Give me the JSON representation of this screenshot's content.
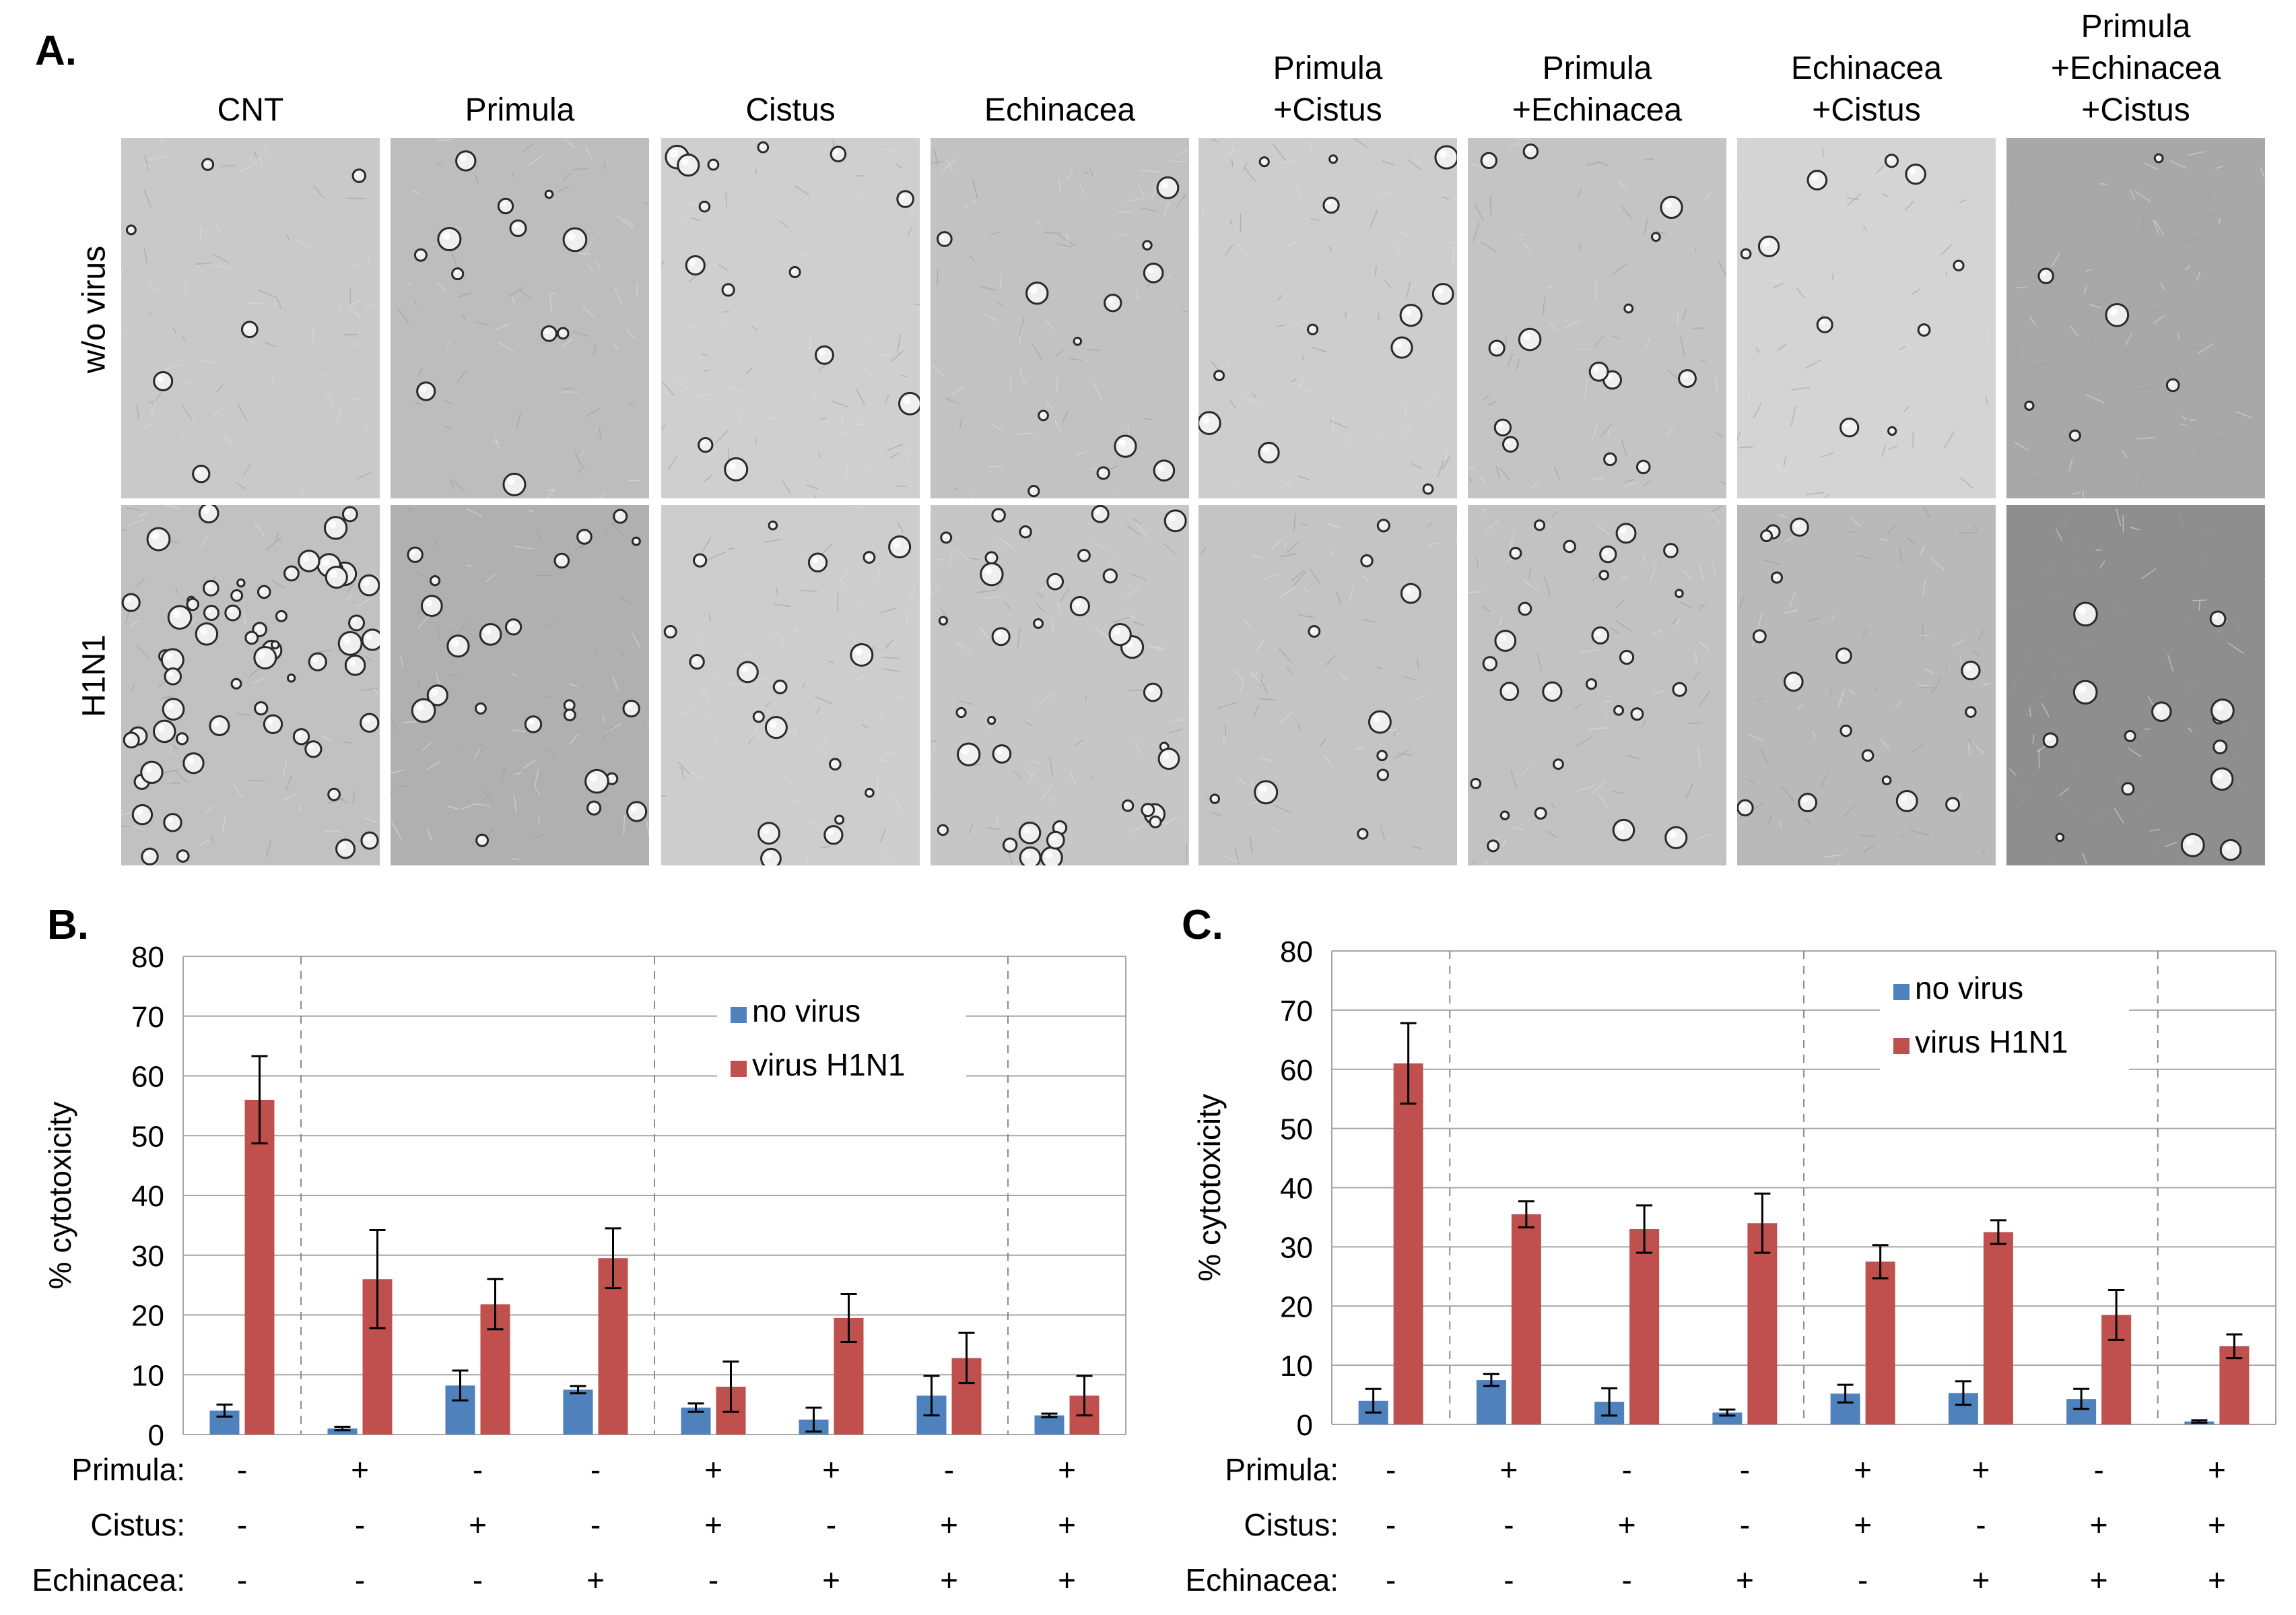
{
  "panel_a": {
    "label": "A.",
    "columns": [
      {
        "lines": [
          "CNT"
        ]
      },
      {
        "lines": [
          "Primula"
        ]
      },
      {
        "lines": [
          "Cistus"
        ]
      },
      {
        "lines": [
          "Echinacea"
        ]
      },
      {
        "lines": [
          "Primula",
          "+Cistus"
        ]
      },
      {
        "lines": [
          "Primula",
          "+Echinacea"
        ]
      },
      {
        "lines": [
          "Echinacea",
          "+Cistus"
        ]
      },
      {
        "lines": [
          "Primula",
          "+Echinacea",
          "+Cistus"
        ]
      }
    ],
    "rows": [
      "w/o virus",
      "H1N1"
    ]
  },
  "legend": {
    "no_virus": "no virus",
    "virus": "virus H1N1"
  },
  "colors": {
    "no_virus": "#4F81BD",
    "virus": "#C0504D",
    "grid": "#A6A6A6",
    "axis": "#A6A6A6"
  },
  "treatment_rows": [
    {
      "label": "Primula:",
      "signs": [
        "-",
        "+",
        "-",
        "-",
        "+",
        "+",
        "-",
        "+"
      ]
    },
    {
      "label": "Cistus:",
      "signs": [
        "-",
        "-",
        "+",
        "-",
        "+",
        "-",
        "+",
        "+"
      ]
    },
    {
      "label": "Echinacea:",
      "signs": [
        "-",
        "-",
        "-",
        "+",
        "-",
        "+",
        "+",
        "+"
      ]
    }
  ],
  "chart_data": [
    {
      "panel": "B.",
      "type": "bar",
      "ylabel": "% cytotoxicity",
      "ylim": [
        0,
        80
      ],
      "yticks": [
        0,
        10,
        20,
        30,
        40,
        50,
        60,
        70,
        80
      ],
      "group_separators_after": [
        1,
        4,
        7
      ],
      "series": [
        {
          "name": "no virus",
          "values": [
            4,
            1,
            8.2,
            7.5,
            4.5,
            2.5,
            6.5,
            3.2
          ],
          "errors": [
            1,
            0.3,
            2.5,
            0.6,
            0.7,
            2,
            3.3,
            0.3
          ]
        },
        {
          "name": "virus H1N1",
          "values": [
            56,
            26,
            21.8,
            29.5,
            8,
            19.5,
            12.8,
            6.5
          ],
          "errors": [
            7.3,
            8.2,
            4.2,
            5,
            4.2,
            4,
            4.2,
            3.3
          ]
        }
      ]
    },
    {
      "panel": "C.",
      "type": "bar",
      "ylabel": "% cytotoxicity",
      "ylim": [
        0,
        80
      ],
      "yticks": [
        0,
        10,
        20,
        30,
        40,
        50,
        60,
        70,
        80
      ],
      "group_separators_after": [
        1,
        4,
        7
      ],
      "series": [
        {
          "name": "no virus",
          "values": [
            4,
            7.5,
            3.8,
            2,
            5.2,
            5.3,
            4.3,
            0.5
          ],
          "errors": [
            2,
            1,
            2.3,
            0.5,
            1.5,
            2,
            1.7,
            0.2
          ]
        },
        {
          "name": "virus H1N1",
          "values": [
            61,
            35.5,
            33,
            34,
            27.5,
            32.5,
            18.5,
            13.2
          ],
          "errors": [
            6.8,
            2.2,
            4,
            5,
            2.8,
            2,
            4.2,
            2
          ]
        }
      ]
    }
  ]
}
